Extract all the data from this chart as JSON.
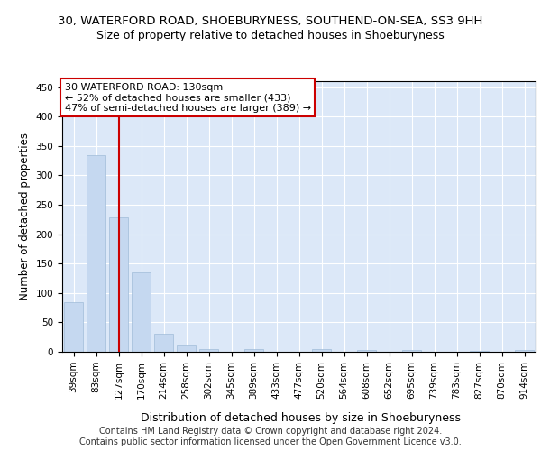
{
  "title1": "30, WATERFORD ROAD, SHOEBURYNESS, SOUTHEND-ON-SEA, SS3 9HH",
  "title2": "Size of property relative to detached houses in Shoeburyness",
  "xlabel": "Distribution of detached houses by size in Shoeburyness",
  "ylabel": "Number of detached properties",
  "categories": [
    "39sqm",
    "83sqm",
    "127sqm",
    "170sqm",
    "214sqm",
    "258sqm",
    "302sqm",
    "345sqm",
    "389sqm",
    "433sqm",
    "477sqm",
    "520sqm",
    "564sqm",
    "608sqm",
    "652sqm",
    "695sqm",
    "739sqm",
    "783sqm",
    "827sqm",
    "870sqm",
    "914sqm"
  ],
  "values": [
    85,
    335,
    228,
    135,
    30,
    10,
    5,
    0,
    5,
    0,
    0,
    4,
    0,
    3,
    0,
    3,
    0,
    0,
    2,
    0,
    3
  ],
  "bar_color": "#c5d8f0",
  "bar_edgecolor": "#a0bcd8",
  "vline_x": 2,
  "vline_color": "#cc0000",
  "annotation_text": "30 WATERFORD ROAD: 130sqm\n← 52% of detached houses are smaller (433)\n47% of semi-detached houses are larger (389) →",
  "annotation_box_color": "#ffffff",
  "annotation_box_edgecolor": "#cc0000",
  "ylim": [
    0,
    460
  ],
  "yticks": [
    0,
    50,
    100,
    150,
    200,
    250,
    300,
    350,
    400,
    450
  ],
  "footer": "Contains HM Land Registry data © Crown copyright and database right 2024.\nContains public sector information licensed under the Open Government Licence v3.0.",
  "bg_color": "#ffffff",
  "plot_bg_color": "#dce8f8",
  "title1_fontsize": 9.5,
  "title2_fontsize": 9,
  "xlabel_fontsize": 9,
  "ylabel_fontsize": 8.5,
  "footer_fontsize": 7,
  "tick_fontsize": 7.5
}
